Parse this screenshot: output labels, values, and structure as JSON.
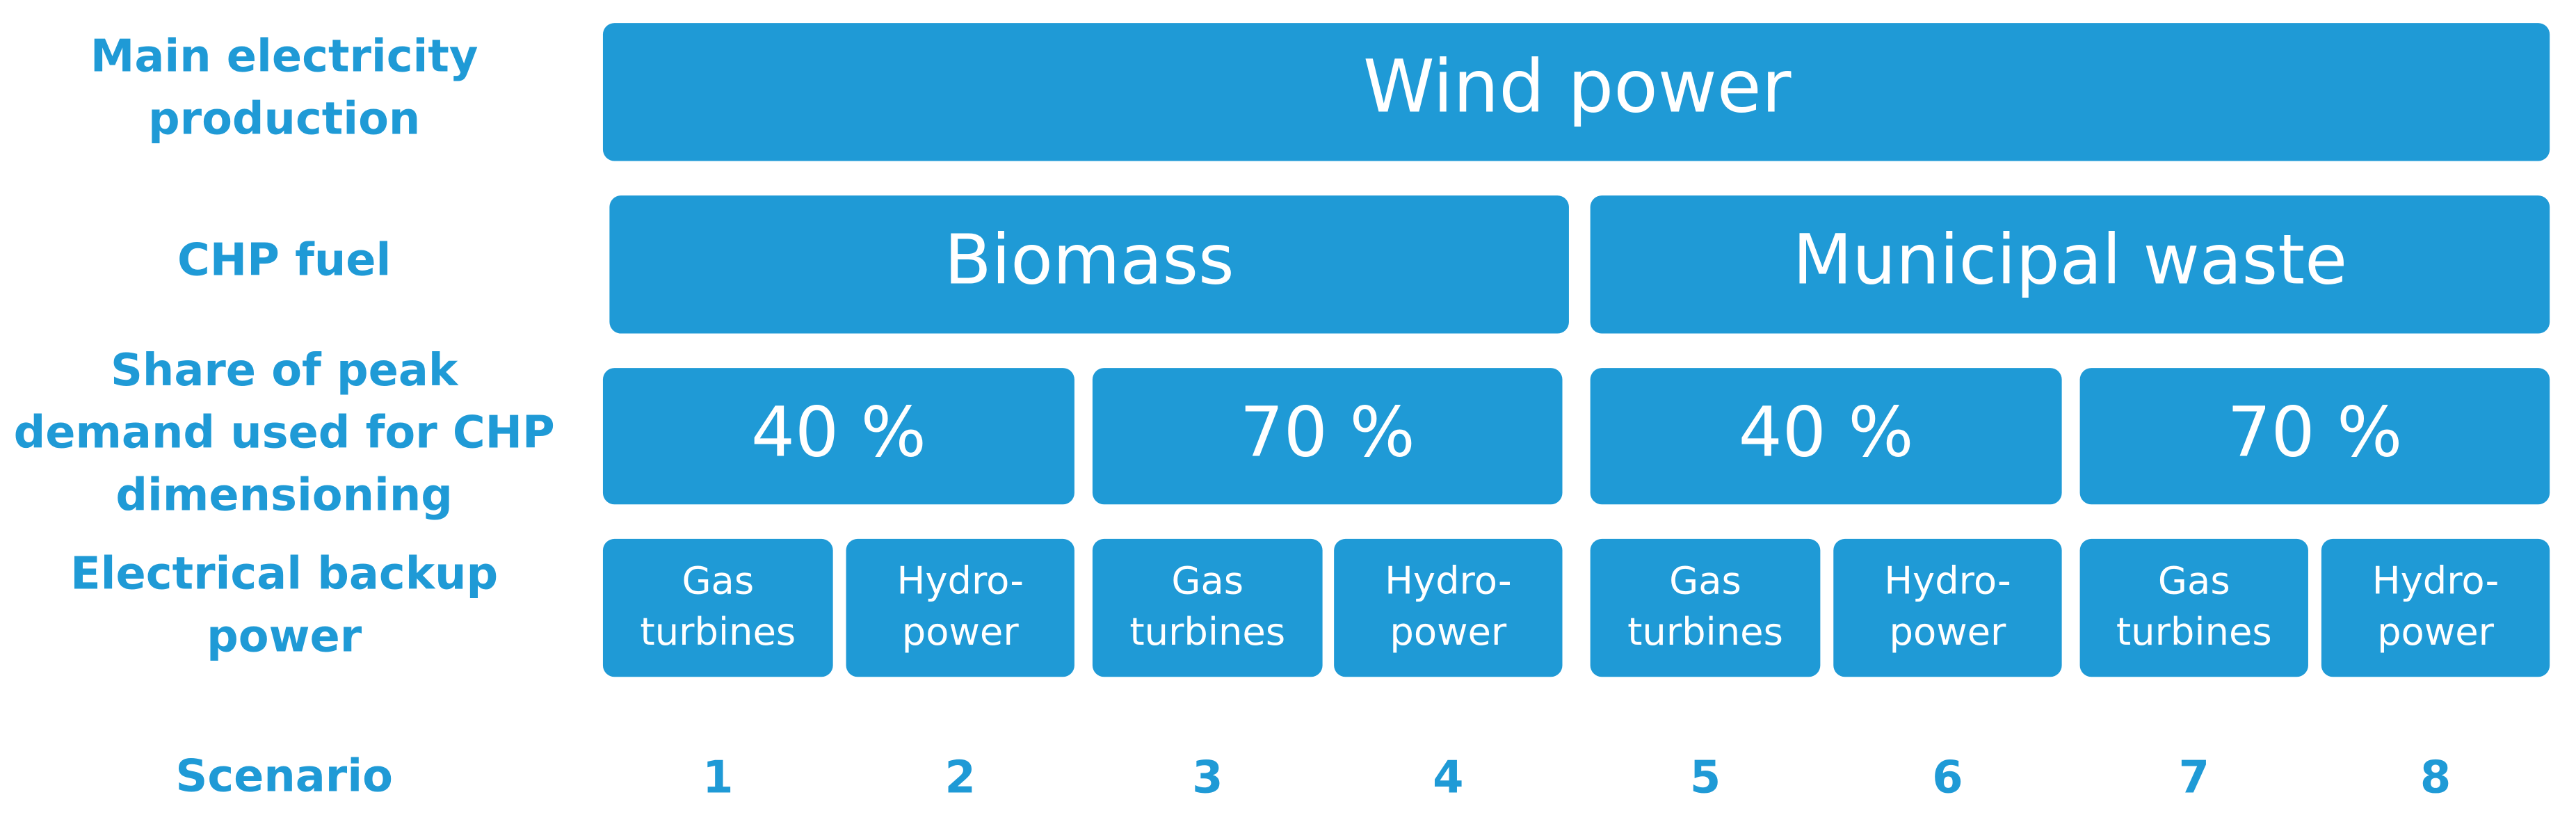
{
  "row_labels": [
    [
      "Main electricity",
      "production"
    ],
    [
      "CHP fuel"
    ],
    [
      "Share of peak",
      "demand used for CHP",
      "dimensioning"
    ],
    [
      "Electrical backup",
      "power"
    ],
    [
      "Scenario"
    ]
  ],
  "main_production": "Wind power",
  "chp_fuel": [
    "Biomass",
    "Municipal waste"
  ],
  "peak_share": [
    "40 %",
    "70 %",
    "40 %",
    "70 %"
  ],
  "backup": [
    [
      "Gas",
      "turbines"
    ],
    [
      "Hydro-",
      "power"
    ],
    [
      "Gas",
      "turbines"
    ],
    [
      "Hydro-",
      "power"
    ],
    [
      "Gas",
      "turbines"
    ],
    [
      "Hydro-",
      "power"
    ],
    [
      "Gas",
      "turbines"
    ],
    [
      "Hydro-",
      "power"
    ]
  ],
  "scenarios": [
    1,
    2,
    3,
    4,
    5,
    6,
    7,
    8
  ]
}
